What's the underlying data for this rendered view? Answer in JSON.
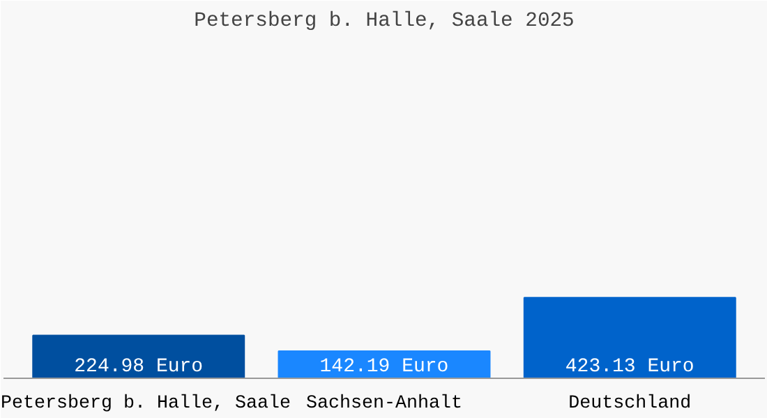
{
  "chart_data": {
    "type": "bar",
    "title": "Petersberg b. Halle, Saale 2025",
    "categories": [
      "Petersberg b. Halle, Saale",
      "Sachsen-Anhalt",
      "Deutschland"
    ],
    "values": [
      224.98,
      142.19,
      423.13
    ],
    "colors": [
      "#004f9f",
      "#1a87ff",
      "#0063cb"
    ],
    "value_labels": [
      "224.98 Euro",
      "142.19 Euro",
      "423.13 Euro"
    ],
    "grid": false
  }
}
